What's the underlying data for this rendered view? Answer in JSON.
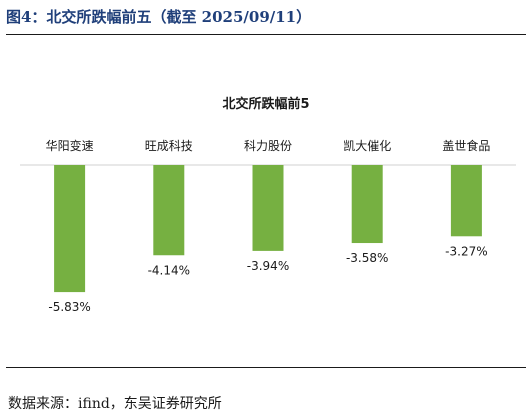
{
  "figure_title": "图4：北交所跌幅前五（截至 2025/09/11）",
  "source": "数据来源：ifind，东吴证券研究所",
  "chart_data": {
    "type": "bar",
    "title": "北交所跌幅前5",
    "categories": [
      "华阳变速",
      "旺成科技",
      "科力股份",
      "凯大催化",
      "盖世食品"
    ],
    "values": [
      -5.83,
      -4.14,
      -3.94,
      -3.58,
      -3.27
    ],
    "value_labels": [
      "-5.83%",
      "-4.14%",
      "-3.94%",
      "-3.58%",
      "-3.27%"
    ],
    "ylim": [
      -6.5,
      0
    ],
    "bar_color": "#76b041",
    "axis_color": "#d0d0d0",
    "grid": false,
    "legend": "none"
  }
}
